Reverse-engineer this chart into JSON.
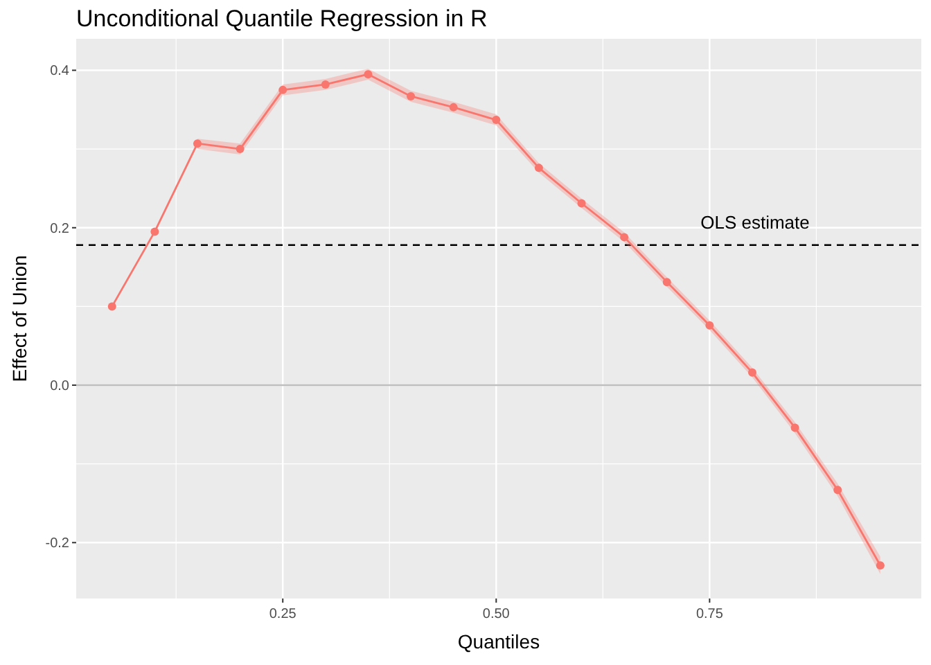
{
  "chart_data": {
    "type": "line",
    "title": "Unconditional Quantile Regression in R",
    "xlabel": "Quantiles",
    "ylabel": "Effect of Union",
    "x": [
      0.05,
      0.1,
      0.15,
      0.2,
      0.25,
      0.3,
      0.35,
      0.4,
      0.45,
      0.5,
      0.55,
      0.6,
      0.65,
      0.7,
      0.75,
      0.8,
      0.85,
      0.9,
      0.95
    ],
    "series": [
      {
        "color": "#f8766d",
        "values": [
          0.1,
          0.195,
          0.307,
          0.3,
          0.375,
          0.382,
          0.395,
          0.367,
          0.353,
          0.337,
          0.276,
          0.231,
          0.188,
          0.131,
          0.076,
          0.016,
          -0.054,
          -0.133,
          -0.229
        ],
        "lower": [
          null,
          null,
          0.3,
          0.293,
          0.368,
          0.375,
          0.388,
          0.36,
          0.346,
          0.33,
          0.27,
          0.225,
          0.182,
          0.125,
          0.07,
          0.01,
          -0.061,
          -0.141,
          -0.24
        ],
        "upper": [
          null,
          null,
          0.313,
          0.307,
          0.382,
          0.389,
          0.402,
          0.374,
          0.36,
          0.344,
          0.282,
          0.237,
          0.194,
          0.137,
          0.082,
          0.022,
          -0.047,
          -0.125,
          -0.218
        ]
      }
    ],
    "xlim": [
      0.008,
      0.998
    ],
    "ylim": [
      -0.271,
      0.44
    ],
    "xticks": [
      {
        "value": 0.25,
        "label": "0.25"
      },
      {
        "value": 0.5,
        "label": "0.50"
      },
      {
        "value": 0.75,
        "label": "0.75"
      }
    ],
    "yticks": [
      {
        "value": -0.2,
        "label": "-0.2"
      },
      {
        "value": 0,
        "label": "0.0"
      },
      {
        "value": 0.2,
        "label": "0.2"
      },
      {
        "value": 0.4,
        "label": "0.4"
      }
    ],
    "ref_lines": [
      {
        "axis": "y",
        "value": 0,
        "label": null,
        "color": "#bebebe",
        "line_style": "solid"
      },
      {
        "axis": "y",
        "value": 0.178,
        "label": "OLS estimate",
        "color": "#000000",
        "line_style": "dashed"
      }
    ],
    "grid": true,
    "marker": "circle",
    "line_style": "solid"
  }
}
